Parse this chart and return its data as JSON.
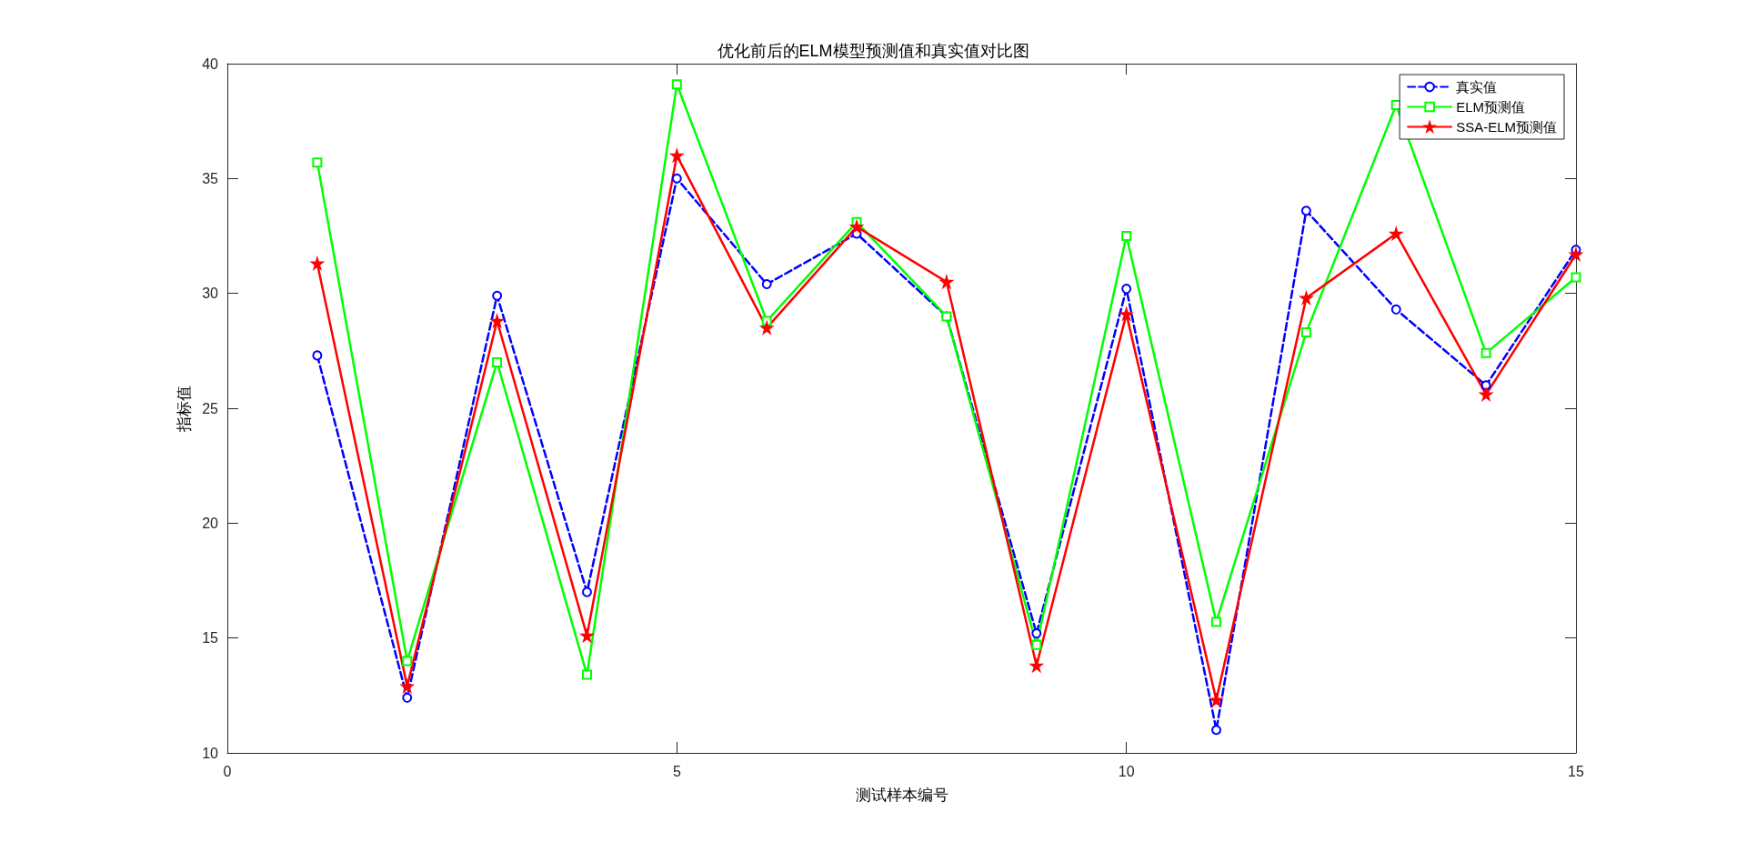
{
  "chart_data": {
    "type": "line",
    "title": "优化前后的ELM模型预测值和真实值对比图",
    "xlabel": "测试样本编号",
    "ylabel": "指标值",
    "x": [
      1,
      2,
      3,
      4,
      5,
      6,
      7,
      8,
      9,
      10,
      11,
      12,
      13,
      14,
      15
    ],
    "series": [
      {
        "name": "真实值",
        "color": "#0000ff",
        "marker": "circle",
        "line_style": "dashed",
        "values": [
          27.3,
          12.4,
          29.9,
          17.0,
          35.0,
          30.4,
          32.6,
          29.0,
          15.2,
          30.2,
          11.0,
          33.6,
          29.3,
          26.0,
          31.9
        ]
      },
      {
        "name": "ELM预测值",
        "color": "#00ff00",
        "marker": "square",
        "line_style": "solid",
        "values": [
          35.7,
          14.0,
          27.0,
          13.4,
          39.1,
          28.8,
          33.1,
          29.0,
          14.7,
          32.5,
          15.7,
          28.3,
          38.2,
          27.4,
          30.7
        ]
      },
      {
        "name": "SSA-ELM预测值",
        "color": "#ff0000",
        "marker": "star",
        "line_style": "solid",
        "values": [
          31.3,
          12.9,
          28.8,
          15.1,
          36.0,
          28.5,
          32.9,
          30.5,
          13.8,
          29.1,
          12.3,
          29.8,
          32.6,
          25.6,
          31.7
        ]
      }
    ],
    "xlim": [
      0,
      15
    ],
    "xticks": [
      0,
      5,
      10,
      15
    ],
    "ylim": [
      10,
      40
    ],
    "yticks": [
      10,
      15,
      20,
      25,
      30,
      35,
      40
    ],
    "grid": false,
    "legend": "top right"
  }
}
